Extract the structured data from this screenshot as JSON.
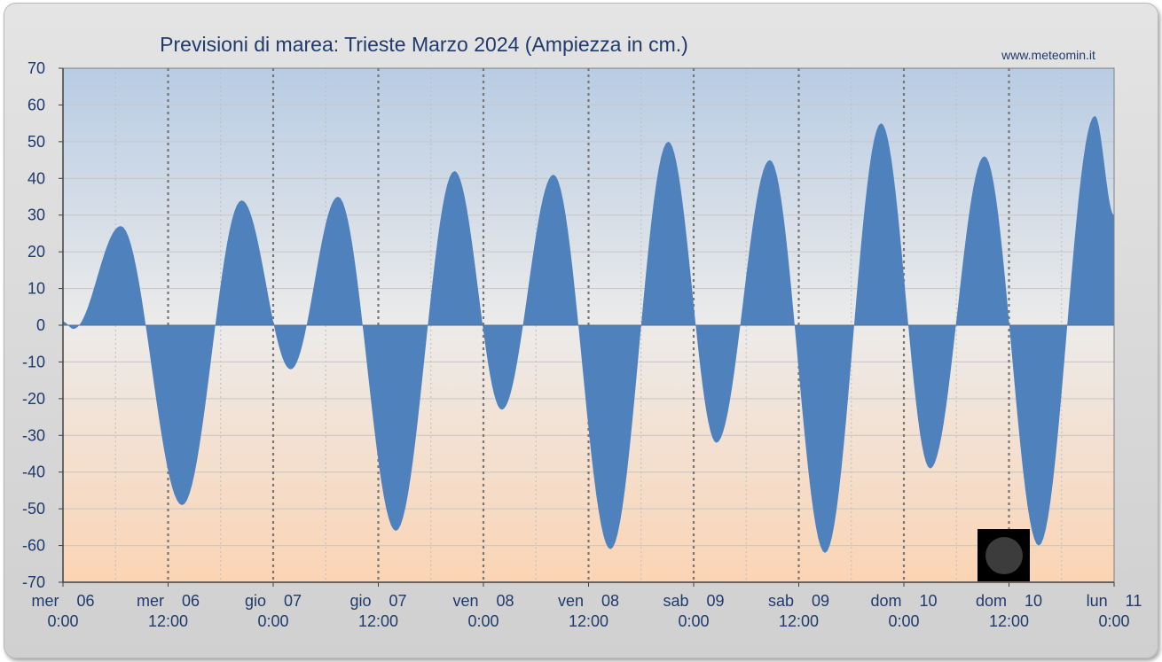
{
  "chart_data": {
    "type": "area",
    "title": "Previsioni di marea: Trieste Marzo 2024 (Ampiezza in cm.)",
    "source": "www.meteomin.it",
    "xlabel": "",
    "ylabel": "",
    "ylim": [
      -70,
      70
    ],
    "yticks": [
      70,
      60,
      50,
      40,
      30,
      20,
      10,
      0,
      -10,
      -20,
      -30,
      -40,
      -50,
      -60,
      -70
    ],
    "xlim_hours": [
      0,
      120
    ],
    "x_unit": "hours from mer 06 0:00",
    "grid": true,
    "legend": "none",
    "x_tick_labels": [
      {
        "hour": 0,
        "day": "mer",
        "date": "06",
        "time": "0:00"
      },
      {
        "hour": 12,
        "day": "mer",
        "date": "06",
        "time": "12:00"
      },
      {
        "hour": 24,
        "day": "gio",
        "date": "07",
        "time": "0:00"
      },
      {
        "hour": 36,
        "day": "gio",
        "date": "07",
        "time": "12:00"
      },
      {
        "hour": 48,
        "day": "ven",
        "date": "08",
        "time": "0:00"
      },
      {
        "hour": 60,
        "day": "ven",
        "date": "08",
        "time": "12:00"
      },
      {
        "hour": 72,
        "day": "sab",
        "date": "09",
        "time": "0:00"
      },
      {
        "hour": 84,
        "day": "sab",
        "date": "09",
        "time": "12:00"
      },
      {
        "hour": 96,
        "day": "dom",
        "date": "10",
        "time": "0:00"
      },
      {
        "hour": 108,
        "day": "dom",
        "date": "10",
        "time": "12:00"
      },
      {
        "hour": 120,
        "day": "lun",
        "date": "11",
        "time": "0:00"
      }
    ],
    "tide_extremes": [
      {
        "hour": 0.0,
        "value": 1
      },
      {
        "hour": 1.2,
        "value": -1
      },
      {
        "hour": 6.6,
        "value": 27
      },
      {
        "hour": 13.6,
        "value": -49
      },
      {
        "hour": 20.4,
        "value": 34
      },
      {
        "hour": 26.0,
        "value": -12
      },
      {
        "hour": 31.4,
        "value": 35
      },
      {
        "hour": 38.0,
        "value": -56
      },
      {
        "hour": 44.7,
        "value": 42
      },
      {
        "hour": 50.1,
        "value": -23
      },
      {
        "hour": 56.0,
        "value": 41
      },
      {
        "hour": 62.5,
        "value": -61
      },
      {
        "hour": 69.1,
        "value": 50
      },
      {
        "hour": 74.6,
        "value": -32
      },
      {
        "hour": 80.7,
        "value": 45
      },
      {
        "hour": 87.0,
        "value": -62
      },
      {
        "hour": 93.4,
        "value": 55
      },
      {
        "hour": 99.0,
        "value": -39
      },
      {
        "hour": 105.2,
        "value": 46
      },
      {
        "hour": 111.4,
        "value": -60
      },
      {
        "hour": 117.8,
        "value": 57
      },
      {
        "hour": 120.0,
        "value": 30
      }
    ],
    "colors": {
      "fill": "#4f81bd",
      "bg_top": "#b8cce4",
      "bg_mid": "#ecebea",
      "bg_bottom": "#fbd4b4",
      "text": "#1f3a6e"
    },
    "moon_phase_icon": "new-moon-icon"
  }
}
